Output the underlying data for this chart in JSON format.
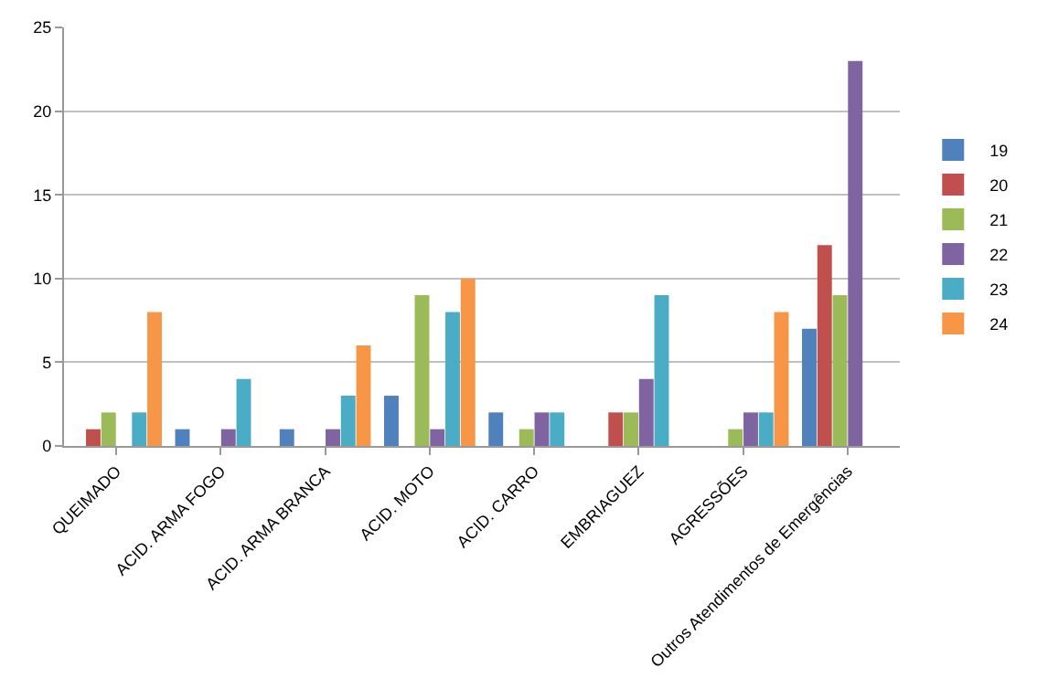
{
  "chart_data": {
    "type": "bar",
    "categories": [
      "QUEIMADO",
      "ACID. ARMA FOGO",
      "ACID. ARMA BRANCA",
      "ACID. MOTO",
      "ACID. CARRO",
      "EMBRIAGUEZ",
      "AGRESSÕES",
      "Outros Atendimentos de Emergências"
    ],
    "series": [
      {
        "name": "19",
        "color": "#4f81bd",
        "values": [
          0,
          1,
          1,
          3,
          2,
          0,
          0,
          7
        ]
      },
      {
        "name": "20",
        "color": "#c0504d",
        "values": [
          1,
          0,
          0,
          0,
          0,
          2,
          0,
          12
        ]
      },
      {
        "name": "21",
        "color": "#9bbb59",
        "values": [
          2,
          0,
          0,
          9,
          1,
          2,
          1,
          9
        ]
      },
      {
        "name": "22",
        "color": "#8064a2",
        "values": [
          0,
          1,
          1,
          1,
          2,
          4,
          2,
          23
        ]
      },
      {
        "name": "23",
        "color": "#4bacc6",
        "values": [
          2,
          4,
          3,
          8,
          2,
          9,
          2,
          0
        ]
      },
      {
        "name": "24",
        "color": "#f79646",
        "values": [
          8,
          0,
          6,
          10,
          0,
          0,
          8,
          0
        ]
      }
    ],
    "ylim": [
      0,
      25
    ],
    "yticks": [
      0,
      5,
      10,
      15,
      20,
      25
    ],
    "grid": "y",
    "legend": "right"
  }
}
